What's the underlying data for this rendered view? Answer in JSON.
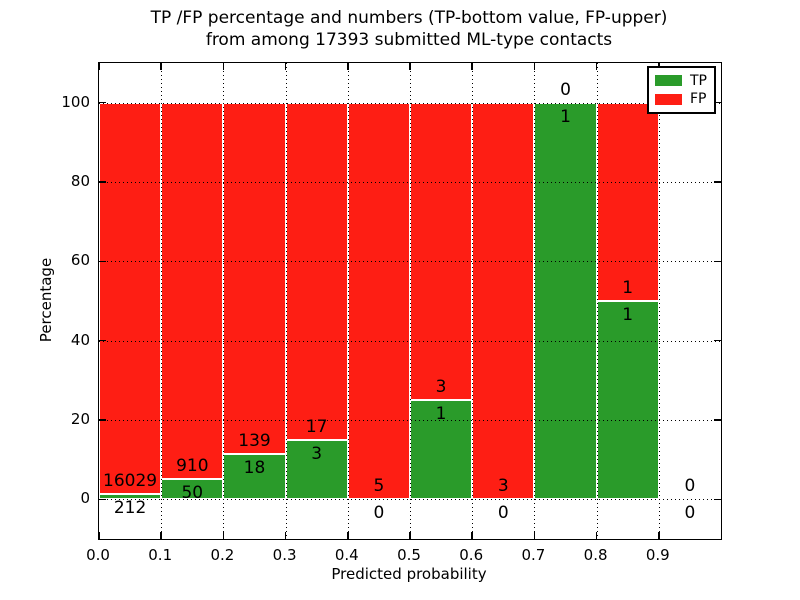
{
  "chart_data": {
    "type": "bar",
    "variant": "stacked-percentage",
    "title_line1": "TP /FP percentage and numbers (TP-bottom value, FP-upper)",
    "title_line2": "from among 17393 submitted ML-type contacts",
    "xlabel": "Predicted probability",
    "ylabel": "Percentage",
    "xlim": [
      0.0,
      1.0
    ],
    "ylim": [
      -10,
      110
    ],
    "grid": "dotted, drawn above bars",
    "legend_position": "upper right",
    "x_ticks": [
      {
        "v": 0.0,
        "label": "0.0"
      },
      {
        "v": 0.1,
        "label": "0.1"
      },
      {
        "v": 0.2,
        "label": "0.2"
      },
      {
        "v": 0.3,
        "label": "0.3"
      },
      {
        "v": 0.4,
        "label": "0.4"
      },
      {
        "v": 0.5,
        "label": "0.5"
      },
      {
        "v": 0.6,
        "label": "0.6"
      },
      {
        "v": 0.7,
        "label": "0.7"
      },
      {
        "v": 0.8,
        "label": "0.8"
      },
      {
        "v": 0.9,
        "label": "0.9"
      }
    ],
    "y_ticks": [
      {
        "v": 0,
        "label": "0"
      },
      {
        "v": 20,
        "label": "20"
      },
      {
        "v": 40,
        "label": "40"
      },
      {
        "v": 60,
        "label": "60"
      },
      {
        "v": 80,
        "label": "80"
      },
      {
        "v": 100,
        "label": "100"
      }
    ],
    "legend": {
      "items": [
        {
          "label": "TP",
          "color": "#2a9b2a"
        },
        {
          "label": "FP",
          "color": "#fe1e14"
        }
      ]
    },
    "colors": {
      "tp": "#2a9b2a",
      "fp": "#fe1e14",
      "bar_edge": "#ffffff",
      "grid": "#000000"
    },
    "bins": [
      {
        "x0": 0.0,
        "x1": 0.1,
        "tp": 212,
        "fp": 16029
      },
      {
        "x0": 0.1,
        "x1": 0.2,
        "tp": 50,
        "fp": 910
      },
      {
        "x0": 0.2,
        "x1": 0.3,
        "tp": 18,
        "fp": 139
      },
      {
        "x0": 0.3,
        "x1": 0.4,
        "tp": 3,
        "fp": 17
      },
      {
        "x0": 0.4,
        "x1": 0.5,
        "tp": 0,
        "fp": 5
      },
      {
        "x0": 0.5,
        "x1": 0.6,
        "tp": 1,
        "fp": 3
      },
      {
        "x0": 0.6,
        "x1": 0.7,
        "tp": 0,
        "fp": 3
      },
      {
        "x0": 0.7,
        "x1": 0.8,
        "tp": 1,
        "fp": 0
      },
      {
        "x0": 0.8,
        "x1": 0.9,
        "tp": 1,
        "fp": 1
      },
      {
        "x0": 0.9,
        "x1": 1.0,
        "tp": 0,
        "fp": 0
      }
    ]
  }
}
